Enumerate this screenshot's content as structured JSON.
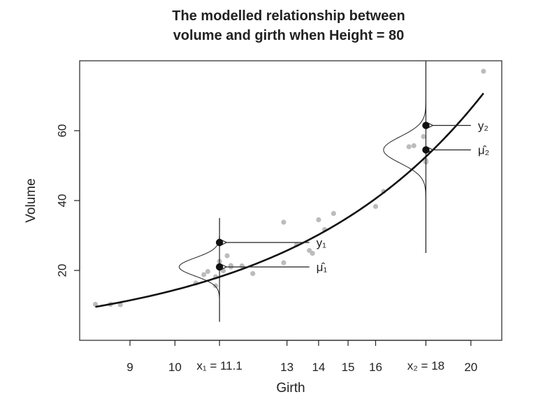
{
  "chart_data": {
    "type": "scatter",
    "title_lines": [
      "The modelled relationship between",
      "volume and girth when Height = 80"
    ],
    "xlabel": "Girth",
    "ylabel": "Volume",
    "xlim": [
      8,
      21.5
    ],
    "ylim": [
      0,
      80
    ],
    "x_scale": "log",
    "x_ticks": [
      {
        "value": 9,
        "label": "9"
      },
      {
        "value": 10,
        "label": "10"
      },
      {
        "value": 13,
        "label": "13"
      },
      {
        "value": 14,
        "label": "14"
      },
      {
        "value": 15,
        "label": "15"
      },
      {
        "value": 16,
        "label": "16"
      },
      {
        "value": 20,
        "label": "20"
      }
    ],
    "x_special_ticks": [
      {
        "value": 11.1,
        "label": "x₁ = 11.1"
      },
      {
        "value": 18,
        "label": "x₂ = 18"
      }
    ],
    "y_ticks": [
      {
        "value": 20,
        "label": "20"
      },
      {
        "value": 40,
        "label": "40"
      },
      {
        "value": 60,
        "label": "60"
      }
    ],
    "points": [
      {
        "x": 8.3,
        "y": 10.3
      },
      {
        "x": 8.6,
        "y": 10.3
      },
      {
        "x": 8.8,
        "y": 10.2
      },
      {
        "x": 10.5,
        "y": 16.4
      },
      {
        "x": 10.7,
        "y": 18.8
      },
      {
        "x": 10.8,
        "y": 19.7
      },
      {
        "x": 11.0,
        "y": 15.6
      },
      {
        "x": 11.0,
        "y": 18.2
      },
      {
        "x": 11.1,
        "y": 22.6
      },
      {
        "x": 11.2,
        "y": 19.9
      },
      {
        "x": 11.3,
        "y": 24.2
      },
      {
        "x": 11.4,
        "y": 21.0
      },
      {
        "x": 11.4,
        "y": 21.4
      },
      {
        "x": 11.7,
        "y": 21.3
      },
      {
        "x": 12.0,
        "y": 19.1
      },
      {
        "x": 12.9,
        "y": 22.2
      },
      {
        "x": 12.9,
        "y": 33.8
      },
      {
        "x": 13.3,
        "y": 27.4
      },
      {
        "x": 13.7,
        "y": 25.7
      },
      {
        "x": 13.8,
        "y": 24.9
      },
      {
        "x": 14.0,
        "y": 34.5
      },
      {
        "x": 14.2,
        "y": 31.7
      },
      {
        "x": 14.5,
        "y": 36.3
      },
      {
        "x": 16.0,
        "y": 38.3
      },
      {
        "x": 16.3,
        "y": 42.6
      },
      {
        "x": 17.3,
        "y": 55.4
      },
      {
        "x": 17.5,
        "y": 55.7
      },
      {
        "x": 17.9,
        "y": 58.3
      },
      {
        "x": 18.0,
        "y": 51.5
      },
      {
        "x": 18.0,
        "y": 51.0
      },
      {
        "x": 20.6,
        "y": 77.0
      }
    ],
    "fitted_curve": {
      "type": "power",
      "a": 0.091,
      "b": 2.2,
      "x_from": 8.3,
      "x_to": 20.6
    },
    "densities": [
      {
        "x": 11.1,
        "mean": 21.0,
        "sd": 2.6,
        "v_from": 5.3,
        "v_to": 35.0,
        "width_girth": 1.0
      },
      {
        "x": 18.0,
        "mean": 54.5,
        "sd": 3.8,
        "v_from": 25.0,
        "v_to": 80.0,
        "width_girth": 1.7
      }
    ],
    "highlighted": [
      {
        "x": 11.1,
        "y": 28.0,
        "label": "y₁",
        "label_x": 13.7
      },
      {
        "x": 11.1,
        "y": 21.0,
        "label": "μ̂₁",
        "label_x": 13.7
      },
      {
        "x": 18.0,
        "y": 61.5,
        "label": "y₂",
        "label_x": 20.0
      },
      {
        "x": 18.0,
        "y": 54.5,
        "label": "μ̂₂",
        "label_x": 20.0
      }
    ]
  }
}
